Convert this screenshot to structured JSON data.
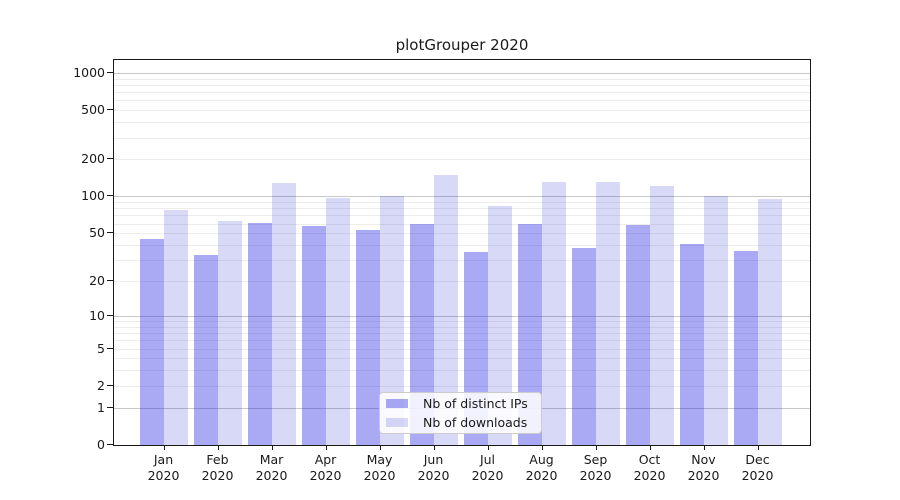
{
  "chart_data": {
    "type": "bar",
    "title": "plotGrouper 2020",
    "categories": [
      "Jan",
      "Feb",
      "Mar",
      "Apr",
      "May",
      "Jun",
      "Jul",
      "Aug",
      "Sep",
      "Oct",
      "Nov",
      "Dec"
    ],
    "year_label": "2020",
    "series": [
      {
        "name": "Nb of distinct IPs",
        "color": "rgba(40,40,228,0.40)",
        "color_hex": "#a9a9f4",
        "values": [
          45,
          33,
          61,
          57,
          53,
          60,
          35,
          60,
          38,
          59,
          41,
          36
        ]
      },
      {
        "name": "Nb of downloads",
        "color": "rgba(15,15,208,0.16)",
        "color_hex": "#d9d9f7",
        "values": [
          77,
          63,
          129,
          97,
          100,
          150,
          84,
          130,
          130,
          122,
          101,
          95
        ]
      }
    ],
    "yscale": "log1p",
    "yticks": [
      1000,
      500,
      200,
      100,
      50,
      20,
      10,
      5,
      2,
      1,
      0
    ],
    "ylim": [
      0,
      1270
    ],
    "xlabel": "",
    "ylabel": "",
    "grid": "horizontal major+minor",
    "legend_position": "lower center inside plot"
  },
  "colors": {
    "grid_major": "#c9c9c9",
    "grid_minor": "#ededed",
    "spine": "#1a1a1a",
    "background": "#ffffff",
    "legend_border": "#cccccc"
  }
}
